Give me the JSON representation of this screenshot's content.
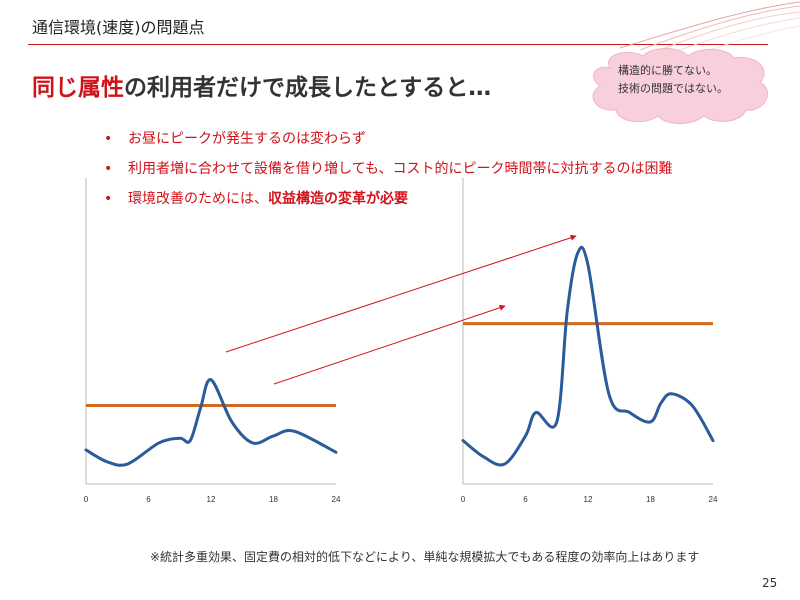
{
  "header": {
    "title": "通信環境(速度)の問題点"
  },
  "headline": {
    "part1": "同じ属性",
    "part2": "の利用者だけで成長したとすると…"
  },
  "callout": {
    "line1": "構造的に勝てない。",
    "line2": "技術の問題ではない。"
  },
  "bullets": {
    "b1": "お昼にピークが発生するのは変わらず",
    "b2": "利用者増に合わせて設備を借り増しても、コスト的にピーク時間帯に対抗するのは困難",
    "b3_plain": "環境改善のためには、",
    "b3_strong": "収益構造の変革が必要"
  },
  "colors": {
    "accent_red": "#d0121a",
    "series_blue": "#2a5b9a",
    "threshold_orange": "#d2691e"
  },
  "chart_data": [
    {
      "type": "line",
      "x_ticks": [
        0,
        6,
        12,
        18,
        24
      ],
      "xlim": [
        0,
        24
      ],
      "ylim": [
        0,
        100
      ],
      "series": [
        {
          "x": [
            0,
            2,
            4,
            7,
            9,
            10,
            11,
            12,
            14,
            16,
            18,
            20,
            24
          ],
          "values": [
            6,
            1,
            0,
            9,
            11,
            10,
            24,
            36,
            18,
            9,
            12,
            14,
            5
          ]
        }
      ],
      "threshold": 25
    },
    {
      "type": "line",
      "x_ticks": [
        0,
        6,
        12,
        18,
        24
      ],
      "xlim": [
        0,
        24
      ],
      "ylim": [
        0,
        100
      ],
      "series": [
        {
          "x": [
            0,
            2,
            4,
            6,
            7,
            9,
            10,
            11,
            12,
            14,
            16,
            18,
            19,
            20,
            22,
            24
          ],
          "values": [
            10,
            3,
            0,
            12,
            22,
            18,
            65,
            90,
            85,
            30,
            22,
            18,
            26,
            30,
            25,
            10
          ]
        }
      ],
      "threshold": 60
    }
  ],
  "footnote": "※統計多重効果、固定費の相対的低下などにより、単純な規模拡大でもある程度の効率向上はあります",
  "page_number": "25"
}
